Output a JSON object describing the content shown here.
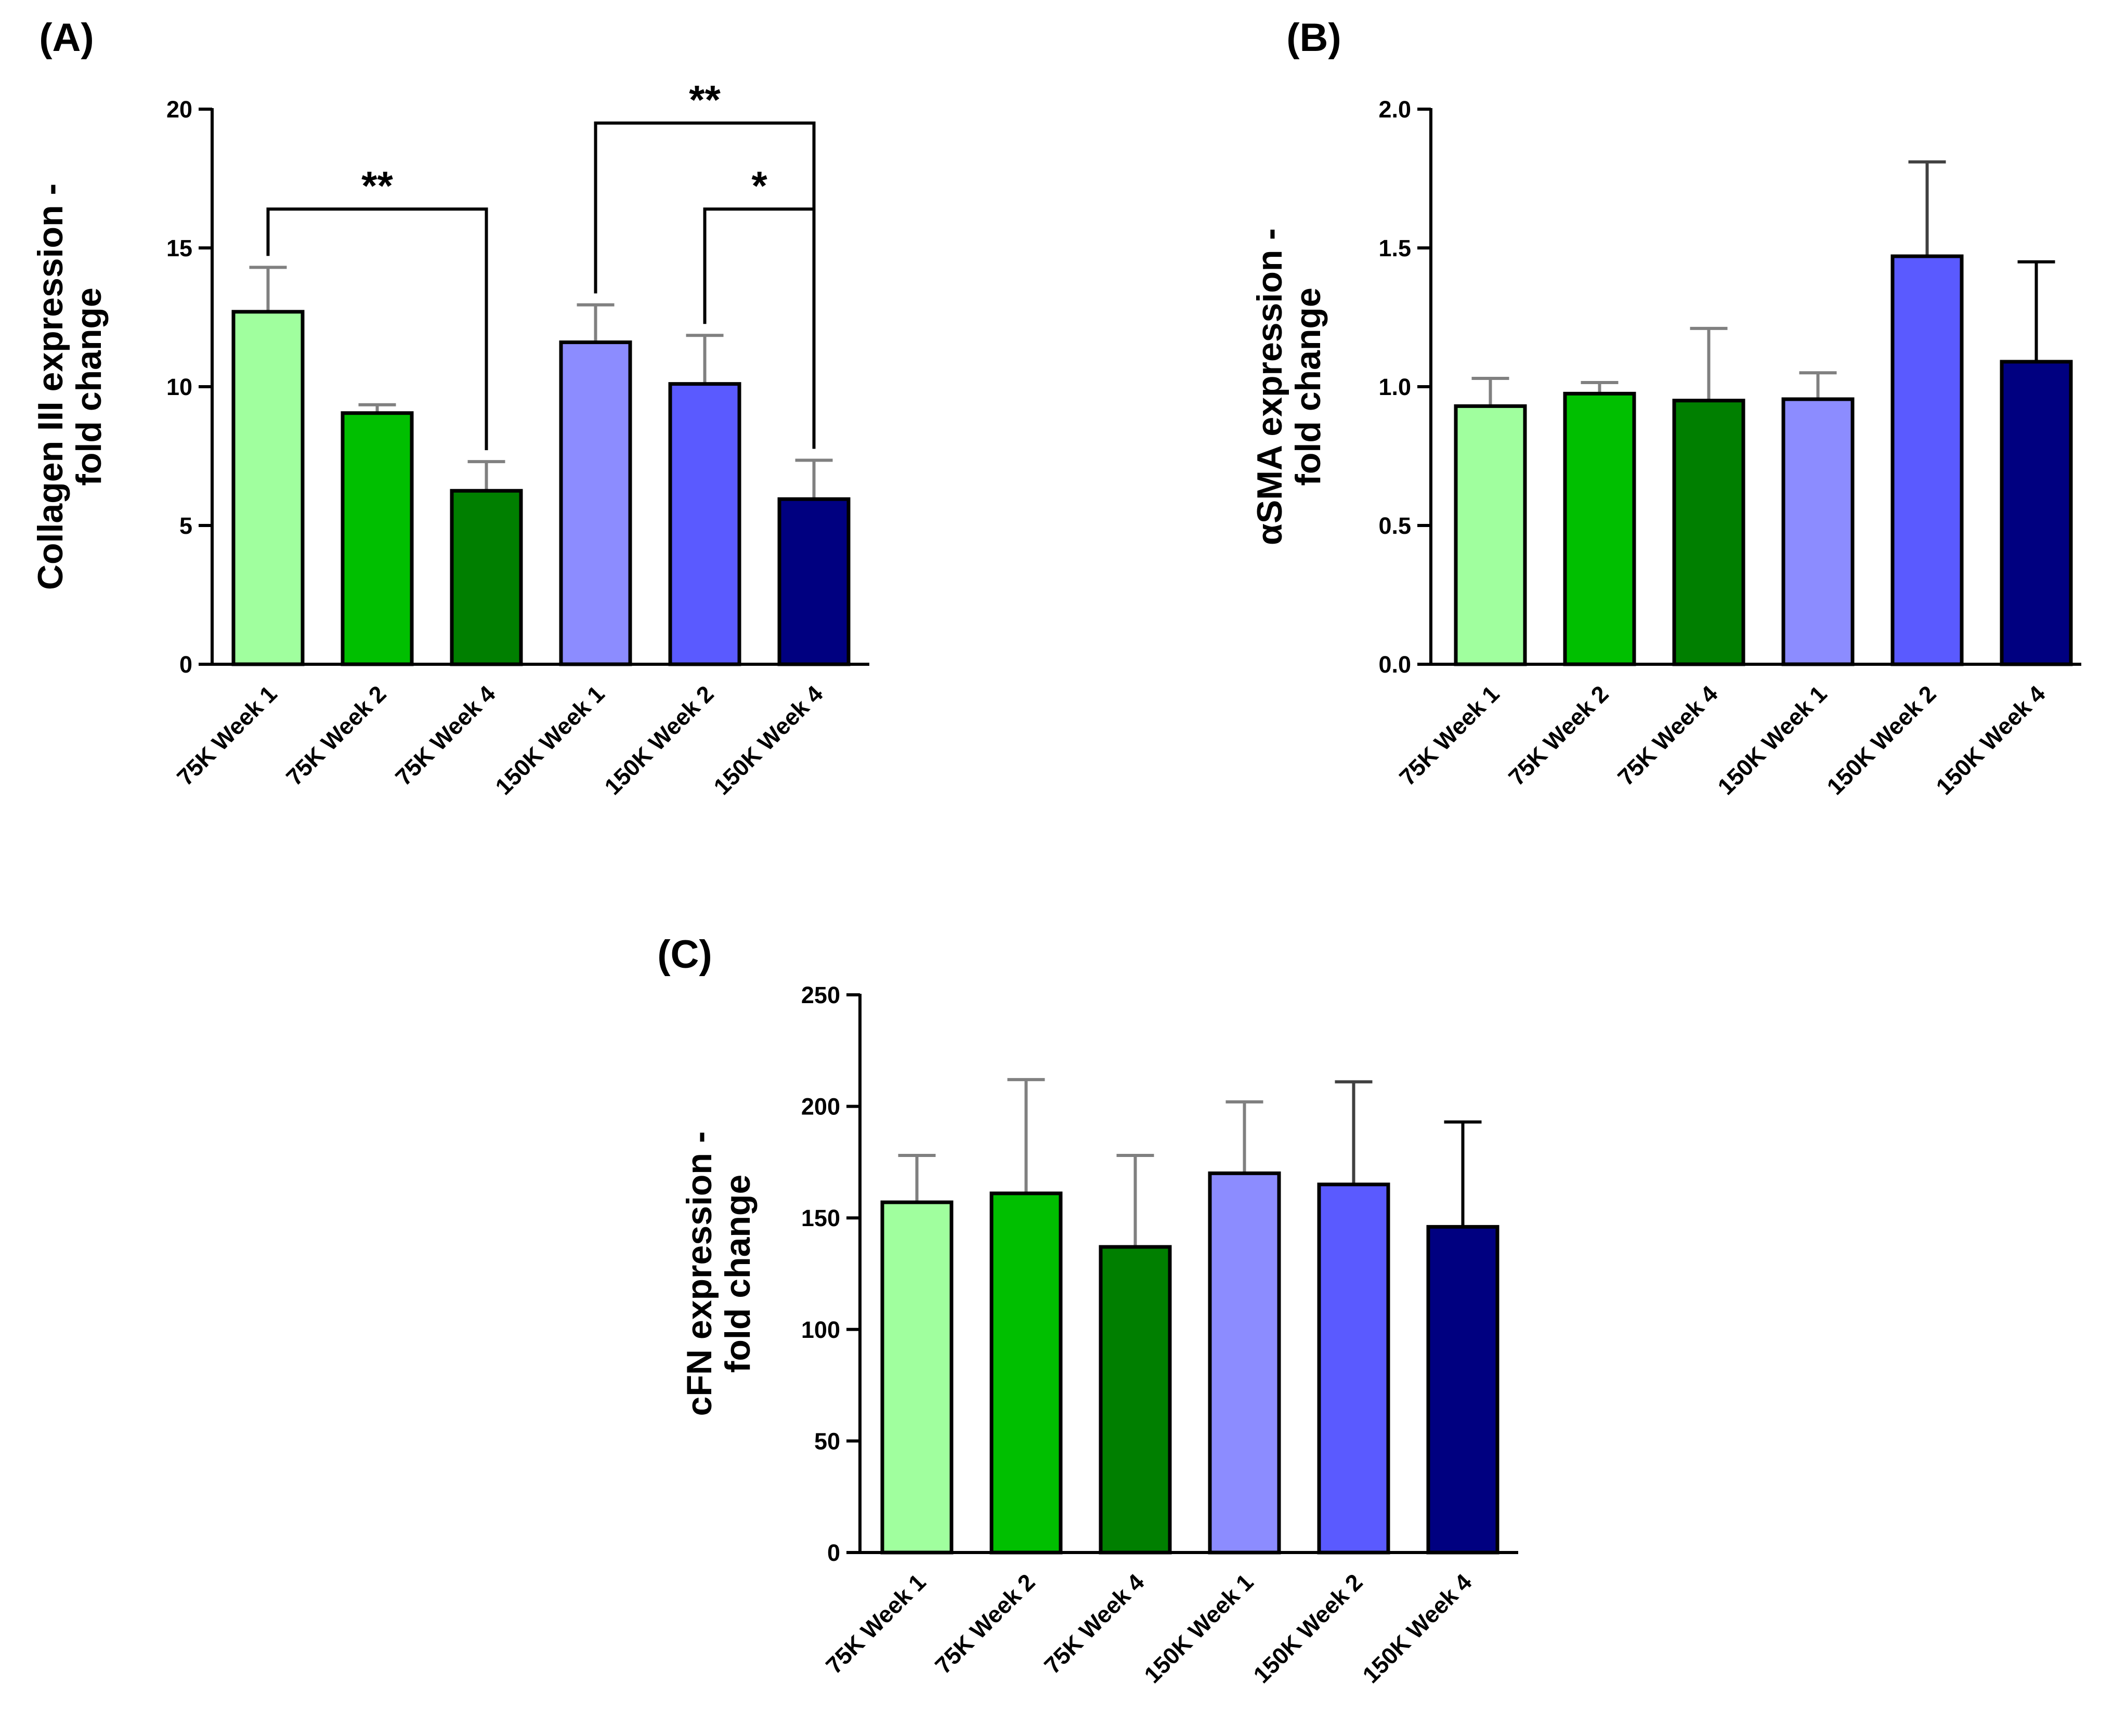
{
  "chart_data": [
    {
      "type": "bar",
      "panel": "(A)",
      "categories": [
        "75K Week 1",
        "75K Week 2",
        "75K Week 4",
        "150K Week 1",
        "150K Week 2",
        "150K Week 4"
      ],
      "values": [
        12.7,
        9.05,
        6.25,
        11.6,
        10.1,
        5.95
      ],
      "errors": [
        1.6,
        0.3,
        1.05,
        1.35,
        1.75,
        1.4
      ],
      "bar_colors": [
        "#a0ff9e",
        "#00bf00",
        "#007f00",
        "#8c8cff",
        "#5a5aff",
        "#000080"
      ],
      "error_colors": [
        "#808080",
        "#808080",
        "#808080",
        "#808080",
        "#808080",
        "#808080"
      ],
      "ylabel_line1": "Collagen III expression -",
      "ylabel_line2": "fold change",
      "ylim": [
        0,
        20
      ],
      "yticks": [
        0,
        5,
        10,
        15,
        20
      ],
      "ytick_labels": [
        "0",
        "5",
        "10",
        "15",
        "20"
      ],
      "significance": [
        {
          "from": 0,
          "to": 2,
          "label": "**"
        },
        {
          "from": 3,
          "to": 5,
          "label": "**"
        },
        {
          "from": 4,
          "to": 5,
          "label": "*"
        }
      ]
    },
    {
      "type": "bar",
      "panel": "(B)",
      "categories": [
        "75K Week 1",
        "75K Week 2",
        "75K Week 4",
        "150K Week 1",
        "150K Week 2",
        "150K Week 4"
      ],
      "values": [
        0.93,
        0.975,
        0.95,
        0.955,
        1.47,
        1.09
      ],
      "errors": [
        0.1,
        0.04,
        0.26,
        0.095,
        0.34,
        0.36
      ],
      "bar_colors": [
        "#a0ff9e",
        "#00bf00",
        "#007f00",
        "#8c8cff",
        "#5a5aff",
        "#000080"
      ],
      "error_colors": [
        "#808080",
        "#808080",
        "#808080",
        "#808080",
        "#404040",
        "#000000"
      ],
      "ylabel_line1": "αSMA expression -",
      "ylabel_line2": "fold change",
      "ylim": [
        0,
        2.0
      ],
      "yticks": [
        0,
        0.5,
        1.0,
        1.5,
        2.0
      ],
      "ytick_labels": [
        "0.0",
        "0.5",
        "1.0",
        "1.5",
        "2.0"
      ],
      "significance": []
    },
    {
      "type": "bar",
      "panel": "(C)",
      "categories": [
        "75K Week 1",
        "75K Week 2",
        "75K Week 4",
        "150K Week 1",
        "150K Week 2",
        "150K Week 4"
      ],
      "values": [
        157,
        161,
        137,
        170,
        165,
        146
      ],
      "errors": [
        21,
        51,
        41,
        32,
        46,
        47
      ],
      "bar_colors": [
        "#a0ff9e",
        "#00bf00",
        "#007f00",
        "#8c8cff",
        "#5a5aff",
        "#000080"
      ],
      "error_colors": [
        "#808080",
        "#808080",
        "#808080",
        "#808080",
        "#404040",
        "#000000"
      ],
      "ylabel_line1": "cFN expression -",
      "ylabel_line2": "fold change",
      "ylim": [
        0,
        250
      ],
      "yticks": [
        0,
        50,
        100,
        150,
        200,
        250
      ],
      "ytick_labels": [
        "0",
        "50",
        "100",
        "150",
        "200",
        "250"
      ],
      "significance": []
    }
  ]
}
